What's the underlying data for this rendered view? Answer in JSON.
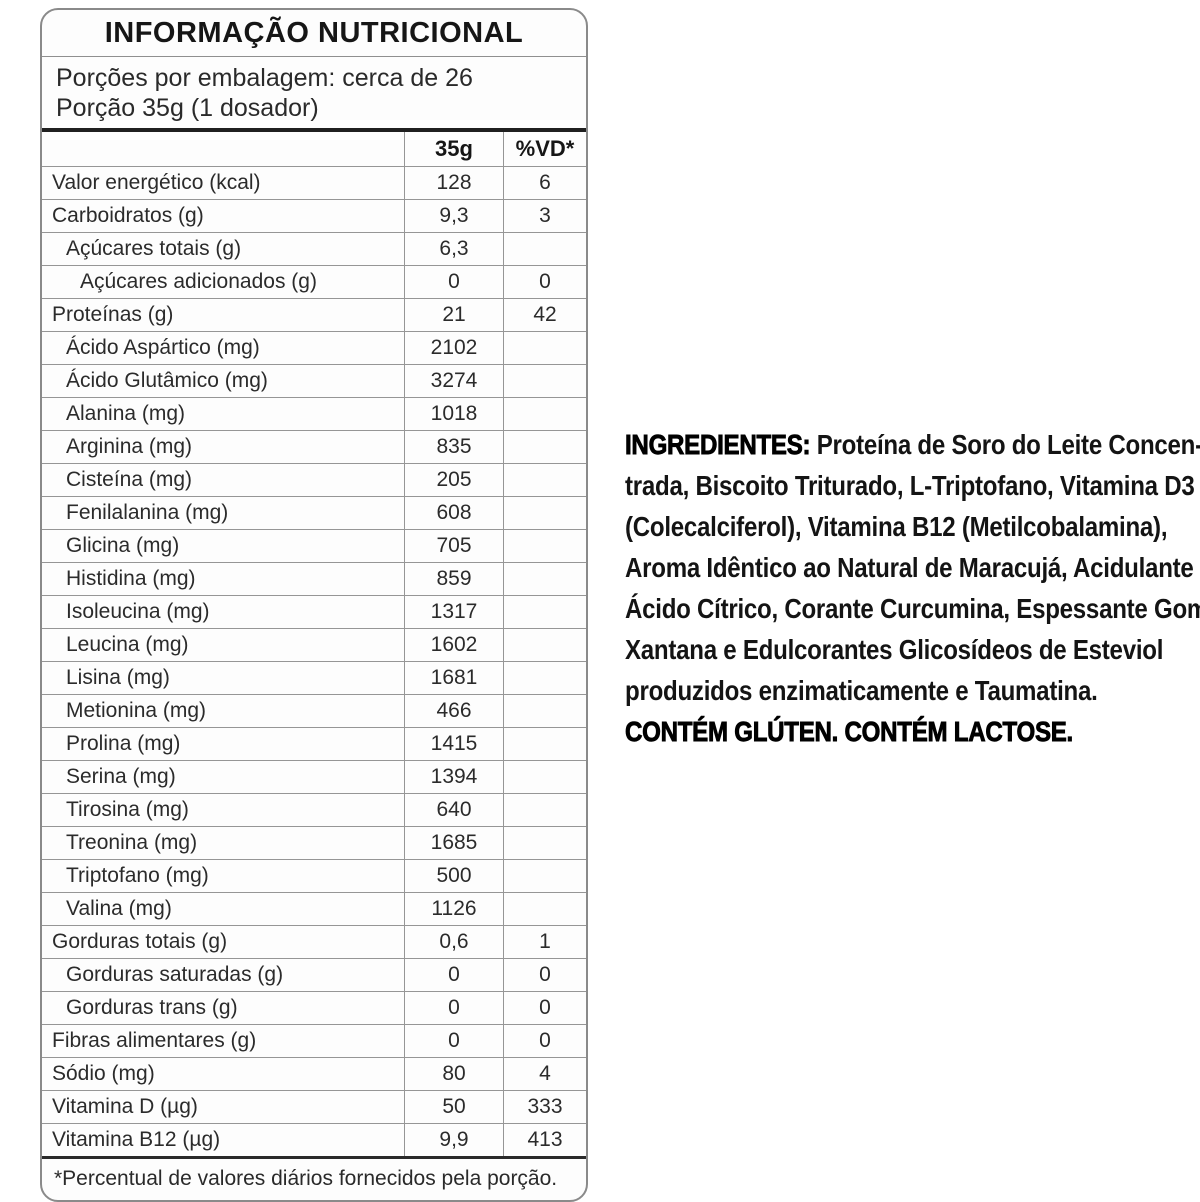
{
  "table": {
    "title": "INFORMAÇÃO NUTRICIONAL",
    "serving_line1": "Porções por embalagem: cerca de 26",
    "serving_line2": "Porção 35g (1 dosador)",
    "columns": {
      "amount": "35g",
      "dv": "%VD*"
    },
    "rows": [
      {
        "label": "Valor energético (kcal)",
        "indent": 0,
        "amount": "128",
        "dv": "6"
      },
      {
        "label": "Carboidratos (g)",
        "indent": 0,
        "amount": "9,3",
        "dv": "3"
      },
      {
        "label": "Açúcares totais (g)",
        "indent": 1,
        "amount": "6,3",
        "dv": ""
      },
      {
        "label": "Açúcares adicionados (g)",
        "indent": 2,
        "amount": "0",
        "dv": "0"
      },
      {
        "label": "Proteínas (g)",
        "indent": 0,
        "amount": "21",
        "dv": "42"
      },
      {
        "label": "Ácido Aspártico (mg)",
        "indent": 1,
        "amount": "2102",
        "dv": ""
      },
      {
        "label": "Ácido Glutâmico (mg)",
        "indent": 1,
        "amount": "3274",
        "dv": ""
      },
      {
        "label": "Alanina (mg)",
        "indent": 1,
        "amount": "1018",
        "dv": ""
      },
      {
        "label": "Arginina (mg)",
        "indent": 1,
        "amount": "835",
        "dv": ""
      },
      {
        "label": "Cisteína (mg)",
        "indent": 1,
        "amount": "205",
        "dv": ""
      },
      {
        "label": "Fenilalanina (mg)",
        "indent": 1,
        "amount": "608",
        "dv": ""
      },
      {
        "label": "Glicina (mg)",
        "indent": 1,
        "amount": "705",
        "dv": ""
      },
      {
        "label": "Histidina (mg)",
        "indent": 1,
        "amount": "859",
        "dv": ""
      },
      {
        "label": "Isoleucina (mg)",
        "indent": 1,
        "amount": "1317",
        "dv": ""
      },
      {
        "label": "Leucina (mg)",
        "indent": 1,
        "amount": "1602",
        "dv": ""
      },
      {
        "label": "Lisina (mg)",
        "indent": 1,
        "amount": "1681",
        "dv": ""
      },
      {
        "label": "Metionina (mg)",
        "indent": 1,
        "amount": "466",
        "dv": ""
      },
      {
        "label": "Prolina (mg)",
        "indent": 1,
        "amount": "1415",
        "dv": ""
      },
      {
        "label": "Serina (mg)",
        "indent": 1,
        "amount": "1394",
        "dv": ""
      },
      {
        "label": "Tirosina (mg)",
        "indent": 1,
        "amount": "640",
        "dv": ""
      },
      {
        "label": "Treonina (mg)",
        "indent": 1,
        "amount": "1685",
        "dv": ""
      },
      {
        "label": "Triptofano (mg)",
        "indent": 1,
        "amount": "500",
        "dv": ""
      },
      {
        "label": "Valina (mg)",
        "indent": 1,
        "amount": "1126",
        "dv": ""
      },
      {
        "label": "Gorduras totais (g)",
        "indent": 0,
        "amount": "0,6",
        "dv": "1"
      },
      {
        "label": "Gorduras saturadas (g)",
        "indent": 1,
        "amount": "0",
        "dv": "0"
      },
      {
        "label": "Gorduras trans (g)",
        "indent": 1,
        "amount": "0",
        "dv": "0"
      },
      {
        "label": "Fibras alimentares (g)",
        "indent": 0,
        "amount": "0",
        "dv": "0"
      },
      {
        "label": "Sódio (mg)",
        "indent": 0,
        "amount": "80",
        "dv": "4"
      },
      {
        "label": "Vitamina D (µg)",
        "indent": 0,
        "amount": "50",
        "dv": "333"
      },
      {
        "label": "Vitamina B12 (µg)",
        "indent": 0,
        "amount": "9,9",
        "dv": "413"
      }
    ],
    "footnote": "*Percentual de valores diários fornecidos pela porção."
  },
  "ingredients": {
    "label": "INGREDIENTES:",
    "line1_rest": " Proteína de Soro do Leite Concen-",
    "lines": [
      "trada, Biscoito Triturado, L-Triptofano, Vitamina D3",
      "(Colecalciferol), Vitamina B12 (Metilcobalamina),",
      "Aroma Idêntico ao Natural de Maracujá, Acidulante",
      "Ácido Cítrico, Corante Curcumina, Espessante Goma",
      "Xantana e Edulcorantes Glicosídeos de Esteviol",
      "produzidos enzimaticamente e Taumatina."
    ],
    "allergens": "CONTÉM GLÚTEN. CONTÉM LACTOSE.",
    "full_text": "Proteína de Soro do Leite Concentrada, Biscoito Triturado, L-Triptofano, Vitamina D3 (Colecalciferol), Vitamina B12 (Metilcobalamina), Aroma Idêntico ao Natural de Maracujá, Acidulante Ácido Cítrico, Corante Curcumina, Espessante Goma Xantana e Edulcorantes Glicosídeos de Esteviol produzidos enzimaticamente e Taumatina."
  },
  "colors": {
    "background": "#ffffff",
    "text": "#1d1d1d",
    "grid_line": "#969696",
    "heavy_rule": "#1f1f1f",
    "card_border": "#8a8a8a"
  }
}
